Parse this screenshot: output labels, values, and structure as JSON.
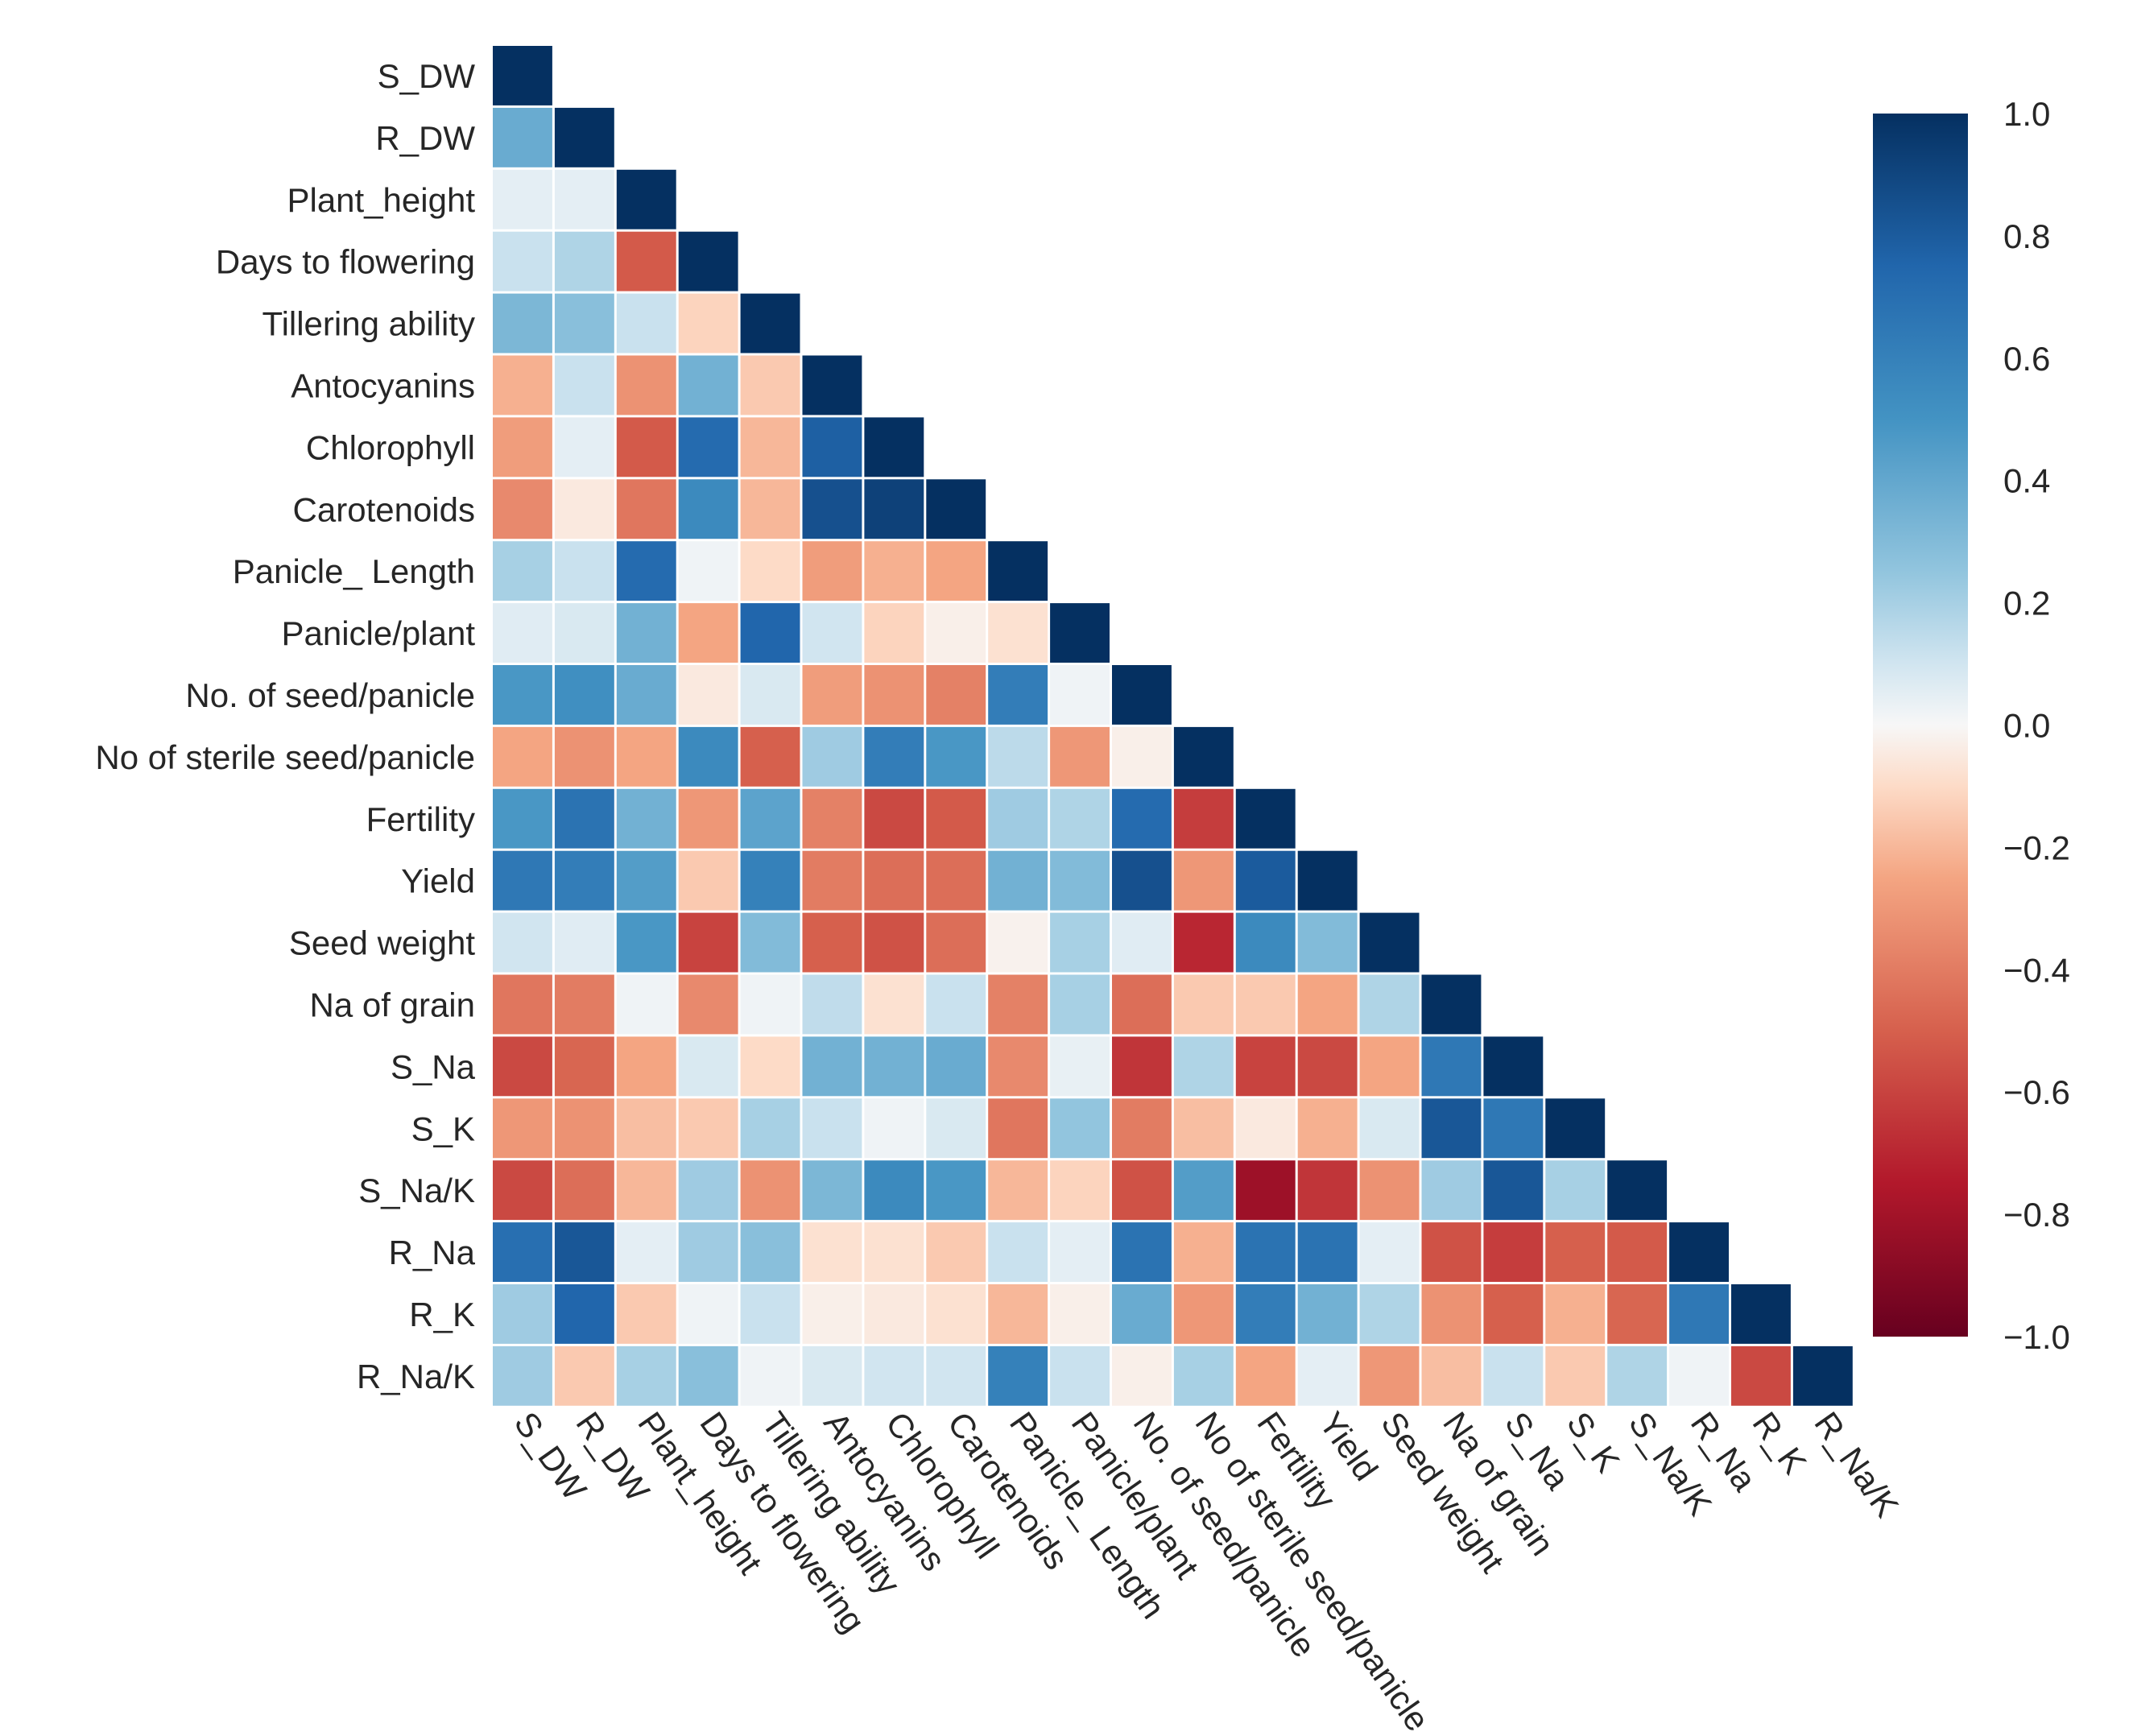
{
  "chart_data": {
    "type": "heatmap",
    "title": "",
    "xlabel": "",
    "ylabel": "",
    "mask": "lower-triangle-including-diagonal",
    "colormap": "RdBu",
    "vmin": -1.0,
    "vmax": 1.0,
    "variables": [
      "S_DW",
      "R_DW",
      "Plant_height",
      "Days to flowering",
      "Tillering ability",
      "Antocyanins",
      "Chlorophyll",
      "Carotenoids",
      "Panicle_ Length",
      "Panicle/plant",
      "No. of seed/panicle",
      "No of sterile seed/panicle",
      "Fertility",
      "Yield",
      "Seed weight",
      "Na of grain",
      "S_Na",
      "S_K",
      "S_Na/K",
      "R_Na",
      "R_K",
      "R_Na/K"
    ],
    "matrix_lower": [
      [
        1.0
      ],
      [
        0.38,
        1.0
      ],
      [
        0.05,
        0.05,
        1.0
      ],
      [
        0.12,
        0.18,
        -0.52,
        1.0
      ],
      [
        0.32,
        0.28,
        0.12,
        -0.12,
        1.0
      ],
      [
        -0.22,
        0.12,
        -0.32,
        0.35,
        -0.15,
        1.0
      ],
      [
        -0.28,
        0.05,
        -0.52,
        0.72,
        -0.2,
        0.78,
        1.0
      ],
      [
        -0.35,
        -0.05,
        -0.42,
        0.55,
        -0.2,
        0.85,
        0.92,
        1.0
      ],
      [
        0.2,
        0.12,
        0.72,
        0.02,
        -0.1,
        -0.28,
        -0.22,
        -0.25,
        1.0
      ],
      [
        0.06,
        0.08,
        0.35,
        -0.25,
        0.75,
        0.1,
        -0.12,
        -0.03,
        -0.08,
        1.0
      ],
      [
        0.48,
        0.52,
        0.38,
        -0.05,
        0.08,
        -0.28,
        -0.32,
        -0.38,
        0.62,
        0.02,
        1.0
      ],
      [
        -0.25,
        -0.32,
        -0.25,
        0.55,
        -0.5,
        0.22,
        0.62,
        0.48,
        0.15,
        -0.3,
        -0.03,
        1.0
      ],
      [
        0.48,
        0.68,
        0.35,
        -0.3,
        0.42,
        -0.38,
        -0.58,
        -0.52,
        0.22,
        0.18,
        0.72,
        -0.62,
        1.0
      ],
      [
        0.65,
        0.62,
        0.45,
        -0.15,
        0.6,
        -0.4,
        -0.45,
        -0.45,
        0.35,
        0.3,
        0.85,
        -0.3,
        0.8,
        1.0
      ],
      [
        0.1,
        0.06,
        0.48,
        -0.6,
        0.3,
        -0.5,
        -0.55,
        -0.45,
        -0.02,
        0.2,
        0.06,
        -0.7,
        0.55,
        0.3,
        1.0
      ],
      [
        -0.42,
        -0.4,
        0.02,
        -0.35,
        0.02,
        0.14,
        -0.08,
        0.12,
        -0.38,
        0.2,
        -0.45,
        -0.15,
        -0.15,
        -0.25,
        0.18,
        1.0
      ],
      [
        -0.58,
        -0.48,
        -0.25,
        0.08,
        -0.1,
        0.35,
        0.35,
        0.38,
        -0.35,
        0.04,
        -0.65,
        0.18,
        -0.6,
        -0.58,
        -0.25,
        0.65,
        1.0
      ],
      [
        -0.3,
        -0.32,
        -0.18,
        -0.15,
        0.2,
        0.12,
        0.02,
        0.08,
        -0.42,
        0.25,
        -0.4,
        -0.18,
        -0.05,
        -0.22,
        0.08,
        0.82,
        0.65,
        1.0
      ],
      [
        -0.58,
        -0.45,
        -0.2,
        0.22,
        -0.32,
        0.32,
        0.55,
        0.48,
        -0.2,
        -0.12,
        -0.55,
        0.45,
        -0.82,
        -0.65,
        -0.32,
        0.22,
        0.82,
        0.2,
        1.0
      ],
      [
        0.7,
        0.82,
        0.05,
        0.22,
        0.28,
        -0.08,
        -0.08,
        -0.15,
        0.12,
        0.05,
        0.68,
        -0.22,
        0.68,
        0.68,
        0.05,
        -0.55,
        -0.62,
        -0.5,
        -0.52,
        1.0
      ],
      [
        0.22,
        0.75,
        -0.15,
        0.02,
        0.12,
        -0.03,
        -0.05,
        -0.08,
        -0.2,
        -0.03,
        0.38,
        -0.3,
        0.62,
        0.35,
        0.18,
        -0.32,
        -0.5,
        -0.22,
        -0.48,
        0.65,
        1.0
      ],
      [
        0.22,
        -0.15,
        0.2,
        0.28,
        0.02,
        0.08,
        0.1,
        0.1,
        0.6,
        0.12,
        -0.03,
        0.2,
        -0.25,
        0.05,
        -0.3,
        -0.18,
        0.12,
        -0.15,
        0.18,
        0.02,
        -0.58,
        1.0
      ]
    ],
    "colorbar": {
      "ticks": [
        1.0,
        0.8,
        0.6,
        0.4,
        0.2,
        0.0,
        -0.2,
        -0.4,
        -0.6,
        -0.8,
        -1.0
      ],
      "tick_labels": [
        "1.0",
        "0.8",
        "0.6",
        "0.4",
        "0.2",
        "0.0",
        "−0.2",
        "−0.4",
        "−0.6",
        "−0.8",
        "−1.0"
      ]
    }
  },
  "colors": {
    "high": "#053061",
    "mid": "#f7f7f7",
    "low": "#67001f",
    "text": "#262626"
  }
}
